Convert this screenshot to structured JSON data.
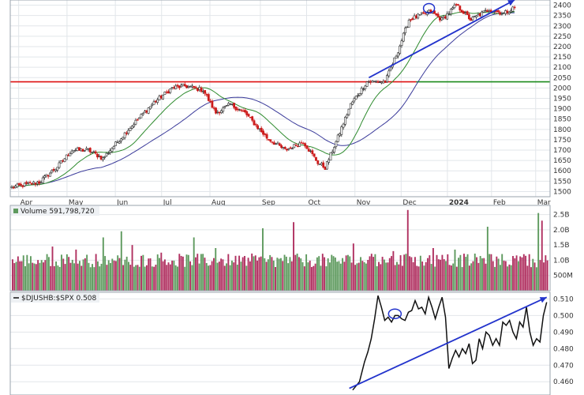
{
  "colors": {
    "up": "#2a2a2a",
    "down": "#cc1a1a",
    "ma_fast": "#2e8b2e",
    "ma_slow": "#3a3a9a",
    "trend": "#2233cc",
    "support_red": "#dd1111",
    "support_green": "#1a8a1a",
    "vol_up": "#5e9a5e",
    "vol_down": "#b03060",
    "grid": "#e2e6ea",
    "panel_border": "#9aa3ad",
    "legend_bg": "#eef1f4"
  },
  "chart_data": [
    {
      "type": "candlestick",
      "panel": "price",
      "ylim": [
        1475,
        2425
      ],
      "yticks": [
        1500,
        1550,
        1600,
        1650,
        1700,
        1750,
        1800,
        1850,
        1900,
        1950,
        2000,
        2050,
        2100,
        2150,
        2200,
        2250,
        2300,
        2350,
        2400
      ],
      "x_labels": [
        "Apr",
        "May",
        "Jun",
        "Jul",
        "Aug",
        "Sep",
        "Oct",
        "Nov",
        "Dec",
        "2024",
        "Feb",
        "Mar"
      ],
      "horizontal_level": 2030,
      "anchors": [
        [
          0,
          1520
        ],
        [
          15,
          1545
        ],
        [
          25,
          1620
        ],
        [
          33,
          1700
        ],
        [
          42,
          1700
        ],
        [
          50,
          1660
        ],
        [
          65,
          1810
        ],
        [
          78,
          1930
        ],
        [
          88,
          2000
        ],
        [
          95,
          2010
        ],
        [
          105,
          1990
        ],
        [
          112,
          1880
        ],
        [
          120,
          1920
        ],
        [
          128,
          1880
        ],
        [
          140,
          1760
        ],
        [
          150,
          1700
        ],
        [
          160,
          1740
        ],
        [
          168,
          1640
        ],
        [
          172,
          1615
        ],
        [
          178,
          1740
        ],
        [
          186,
          1920
        ],
        [
          195,
          2030
        ],
        [
          205,
          2030
        ],
        [
          212,
          2180
        ],
        [
          218,
          2330
        ],
        [
          230,
          2370
        ],
        [
          236,
          2330
        ],
        [
          244,
          2400
        ],
        [
          252,
          2330
        ],
        [
          262,
          2380
        ],
        [
          270,
          2360
        ],
        [
          276,
          2390
        ]
      ],
      "ma_fast_window": 20,
      "ma_slow_window": 50,
      "trendline": [
        [
          196,
          2050
        ],
        [
          276,
          2425
        ]
      ]
    },
    {
      "type": "bar",
      "panel": "volume",
      "title": "Volume 591,798,720",
      "ylim": [
        0,
        2.8
      ],
      "yticks": [
        0.5,
        1.0,
        1.5,
        2.0,
        2.5
      ],
      "ytick_labels": [
        "500M",
        "1.0B",
        "1.5B",
        "2.0B",
        "2.5B"
      ],
      "base": 0.95,
      "spikes": [
        [
          22,
          1.45
        ],
        [
          35,
          1.35
        ],
        [
          50,
          1.75
        ],
        [
          60,
          1.95
        ],
        [
          66,
          1.5
        ],
        [
          82,
          1.25
        ],
        [
          100,
          1.75
        ],
        [
          112,
          1.4
        ],
        [
          125,
          1.15
        ],
        [
          138,
          2.05
        ],
        [
          155,
          2.25
        ],
        [
          172,
          1.1
        ],
        [
          188,
          1.55
        ],
        [
          200,
          1.2
        ],
        [
          210,
          1.3
        ],
        [
          218,
          2.65
        ],
        [
          232,
          1.4
        ],
        [
          244,
          1.35
        ],
        [
          256,
          1.1
        ],
        [
          262,
          2.1
        ],
        [
          268,
          1.05
        ],
        [
          282,
          1.2
        ],
        [
          290,
          2.55
        ],
        [
          292,
          2.3
        ]
      ]
    },
    {
      "type": "line",
      "panel": "ratio",
      "title": "$DJUSHB:$SPX 0.508",
      "ylim": [
        0.452,
        0.514
      ],
      "yticks": [
        0.46,
        0.47,
        0.48,
        0.49,
        0.5,
        0.51
      ],
      "ytick_labels": [
        "0.460",
        "0.470",
        "0.480",
        "0.490",
        "0.500",
        "0.510"
      ],
      "points": [
        [
          203,
          0.455
        ],
        [
          207,
          0.46
        ],
        [
          210,
          0.472
        ],
        [
          212,
          0.478
        ],
        [
          214,
          0.486
        ],
        [
          216,
          0.498
        ],
        [
          218,
          0.512
        ],
        [
          220,
          0.505
        ],
        [
          222,
          0.497
        ],
        [
          224,
          0.499
        ],
        [
          226,
          0.496
        ],
        [
          228,
          0.5
        ],
        [
          230,
          0.5
        ],
        [
          232,
          0.498
        ],
        [
          234,
          0.497
        ],
        [
          236,
          0.502
        ],
        [
          238,
          0.503
        ],
        [
          240,
          0.509
        ],
        [
          242,
          0.504
        ],
        [
          244,
          0.505
        ],
        [
          246,
          0.501
        ],
        [
          248,
          0.511
        ],
        [
          250,
          0.505
        ],
        [
          252,
          0.498
        ],
        [
          254,
          0.505
        ],
        [
          256,
          0.511
        ],
        [
          258,
          0.499
        ],
        [
          260,
          0.468
        ],
        [
          262,
          0.474
        ],
        [
          264,
          0.479
        ],
        [
          266,
          0.475
        ],
        [
          268,
          0.48
        ],
        [
          270,
          0.477
        ],
        [
          272,
          0.483
        ],
        [
          274,
          0.471
        ],
        [
          276,
          0.473
        ],
        [
          278,
          0.486
        ],
        [
          280,
          0.48
        ],
        [
          282,
          0.49
        ],
        [
          284,
          0.488
        ],
        [
          286,
          0.482
        ],
        [
          288,
          0.486
        ],
        [
          290,
          0.482
        ],
        [
          292,
          0.496
        ],
        [
          294,
          0.494
        ],
        [
          296,
          0.497
        ],
        [
          298,
          0.49
        ],
        [
          300,
          0.486
        ],
        [
          302,
          0.496
        ],
        [
          304,
          0.493
        ],
        [
          306,
          0.505
        ],
        [
          308,
          0.49
        ],
        [
          310,
          0.482
        ],
        [
          312,
          0.486
        ],
        [
          314,
          0.484
        ],
        [
          316,
          0.5
        ],
        [
          318,
          0.508
        ]
      ],
      "trendline": [
        [
          201,
          0.456
        ],
        [
          318,
          0.511
        ]
      ]
    }
  ]
}
